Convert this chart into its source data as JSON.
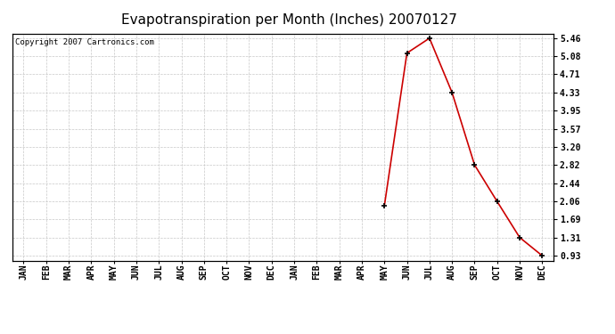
{
  "title": "Evapotranspiration per Month (Inches) 20070127",
  "copyright": "Copyright 2007 Cartronics.com",
  "x_labels": [
    "JAN",
    "FEB",
    "MAR",
    "APR",
    "MAY",
    "JUN",
    "JUL",
    "AUG",
    "SEP",
    "OCT",
    "NOV",
    "DEC",
    "JAN",
    "FEB",
    "MAR",
    "APR",
    "MAY",
    "JUN",
    "JUL",
    "AUG",
    "SEP",
    "OCT",
    "NOV",
    "DEC"
  ],
  "data_x_indices": [
    16,
    17,
    18,
    19,
    20,
    21,
    22,
    23
  ],
  "data_values": [
    1.97,
    5.15,
    5.46,
    4.33,
    2.82,
    2.06,
    1.31,
    0.93
  ],
  "y_ticks": [
    0.93,
    1.31,
    1.69,
    2.06,
    2.44,
    2.82,
    3.2,
    3.57,
    3.95,
    4.33,
    4.71,
    5.08,
    5.46
  ],
  "y_min": 0.93,
  "y_max": 5.46,
  "line_color": "#cc0000",
  "marker_color": "#000000",
  "grid_color": "#c8c8c8",
  "background_color": "#ffffff",
  "outer_background": "#ffffff",
  "title_fontsize": 11,
  "tick_fontsize": 7,
  "copyright_fontsize": 6.5,
  "border_color": "#000000"
}
